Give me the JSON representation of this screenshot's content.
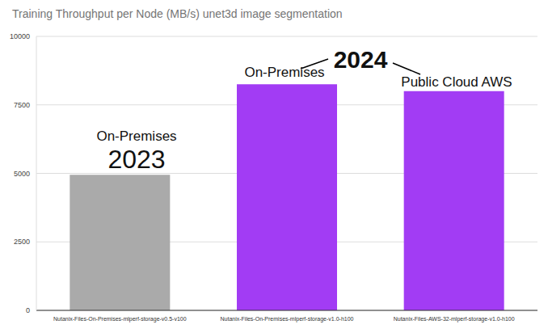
{
  "chart_data": {
    "type": "bar",
    "title": "Training Throughput per Node (MB/s) unet3d image segmentation",
    "categories": [
      "Nutanix-Files-On-Premises-mlperf-storage-v0.5-v100",
      "Nutanix-Files-On-Premises-mlperf-storage-v1.0-h100",
      "Nutanix-Files-AWS-32-mlperf-storage-v1.0-h100"
    ],
    "values": [
      4950,
      8250,
      8000
    ],
    "colors": [
      "#aaaaaa",
      "#a23cf4",
      "#a23cf4"
    ],
    "ylim": [
      0,
      10000
    ],
    "yticks": [
      0,
      2500,
      5000,
      7500,
      10000
    ],
    "grid": true,
    "annotations": [
      "On-Premises",
      "2023",
      "2024",
      "On-Premises",
      "Public Cloud AWS"
    ]
  }
}
